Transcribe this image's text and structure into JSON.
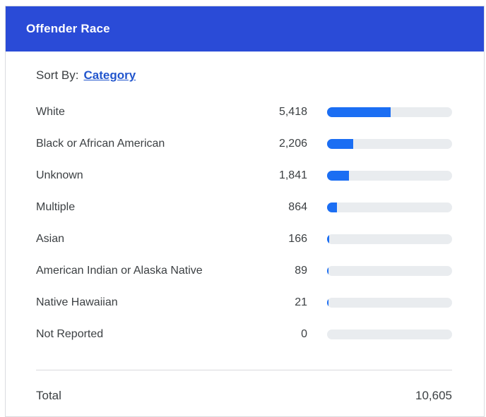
{
  "card": {
    "header": {
      "title": "Offender Race"
    },
    "sort": {
      "label": "Sort By:",
      "link_label": "Category"
    },
    "total": {
      "label": "Total",
      "value": "10,605"
    }
  },
  "chart_data": {
    "type": "bar",
    "orientation": "horizontal",
    "title": "Offender Race",
    "categories": [
      "White",
      "Black or African American",
      "Unknown",
      "Multiple",
      "Asian",
      "American Indian or Alaska Native",
      "Native Hawaiian",
      "Not Reported"
    ],
    "values": [
      5418,
      2206,
      1841,
      864,
      166,
      89,
      21,
      0
    ],
    "value_labels": [
      "5,418",
      "2,206",
      "1,841",
      "864",
      "166",
      "89",
      "21",
      "0"
    ],
    "total": 10605,
    "total_label": "10,605",
    "bar_scale": "fraction_of_total",
    "colors": {
      "header_bg": "#2a4bd7",
      "bar_fill": "#1b6ef3",
      "bar_track": "#e9ecef",
      "link": "#2155cd",
      "text": "#3c4043"
    }
  }
}
